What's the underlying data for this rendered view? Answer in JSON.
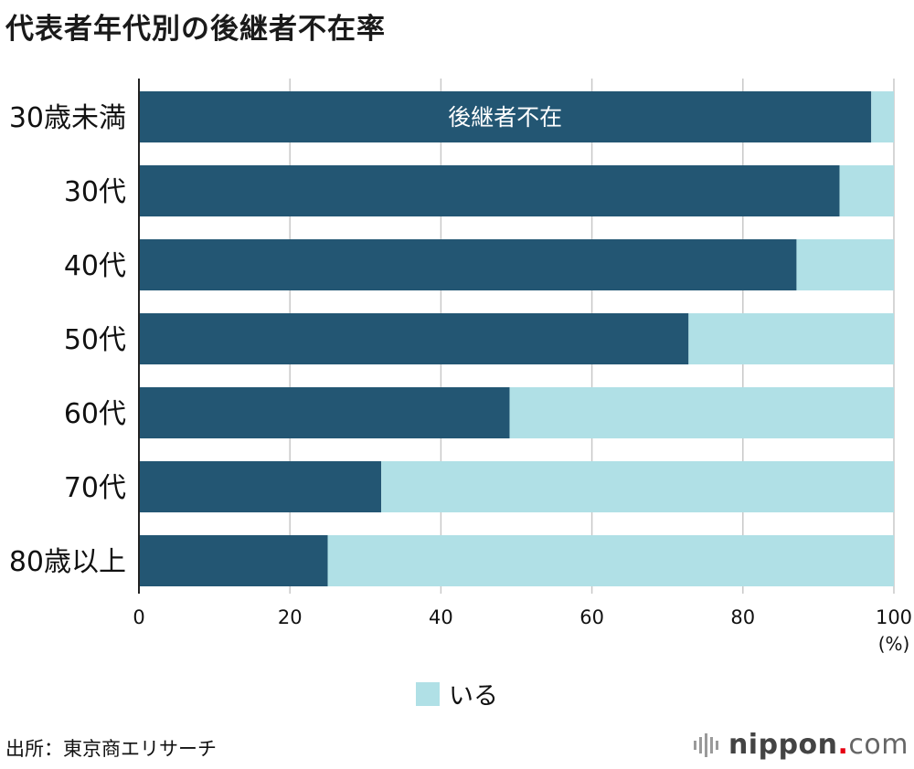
{
  "title": "代表者年代別の後継者不在率",
  "source": "出所：東京商エリサーチ",
  "brand": {
    "name": "nippon",
    "dot": ".",
    "tld": "com"
  },
  "colors": {
    "absent": "#235673",
    "present": "#b0e0e6",
    "grid": "#c8c8c8"
  },
  "chart_data": {
    "type": "bar",
    "orientation": "horizontal",
    "stacked": true,
    "title": "代表者年代別の後継者不在率",
    "categories": [
      "30歳未満",
      "30代",
      "40代",
      "50代",
      "60代",
      "70代",
      "80歳以上"
    ],
    "series": [
      {
        "name": "後継者不在",
        "values": [
          97.0,
          92.8,
          87.1,
          72.8,
          49.1,
          32.1,
          25.0
        ]
      },
      {
        "name": "いる",
        "values": [
          3.0,
          7.2,
          12.9,
          27.2,
          50.9,
          67.9,
          75.0
        ]
      }
    ],
    "xlim": [
      0,
      100
    ],
    "xticks": [
      0,
      20,
      40,
      60,
      80,
      100
    ],
    "xunit": "(%)",
    "grid": true,
    "inline_label": "後継者不在",
    "legend": {
      "label": "いる",
      "position": "bottom"
    }
  }
}
